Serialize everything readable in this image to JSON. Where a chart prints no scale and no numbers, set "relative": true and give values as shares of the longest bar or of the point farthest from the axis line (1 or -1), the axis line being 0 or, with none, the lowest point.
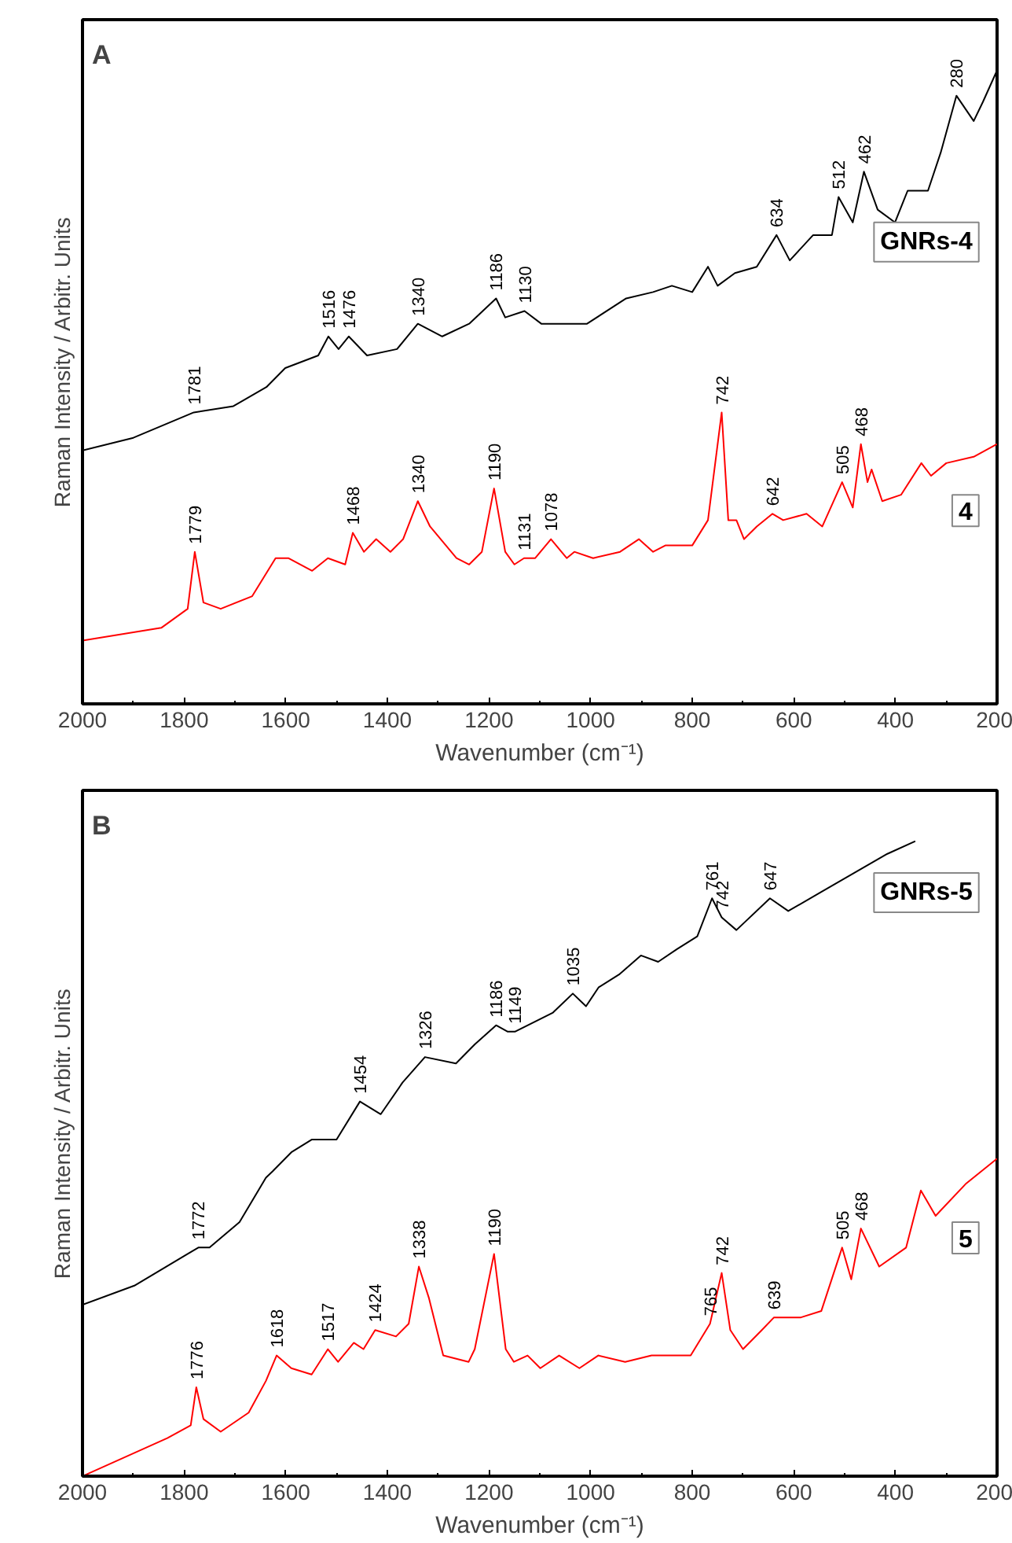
{
  "chart_data": [
    {
      "type": "line",
      "title": "A",
      "xlabel": "Wavenumber (cm⁻¹)",
      "ylabel": "Raman Intensity / Arbitr. Units",
      "relative": true,
      "xlim": [
        2000,
        200
      ],
      "xticks": [
        2000,
        1800,
        1600,
        1400,
        1200,
        1000,
        800,
        600,
        400,
        200
      ],
      "grid": false,
      "tick_labels": "x",
      "series": [
        {
          "name": "GNRs-4",
          "color": "#000000",
          "x": [
            2000,
            1900,
            1781,
            1703,
            1638,
            1601,
            1536,
            1516,
            1496,
            1476,
            1440,
            1381,
            1340,
            1292,
            1239,
            1186,
            1168,
            1130,
            1097,
            1007,
            930,
            877,
            840,
            800,
            769,
            750,
            716,
            673,
            634,
            608,
            562,
            525,
            512,
            484,
            462,
            435,
            401,
            376,
            336,
            311,
            280,
            246,
            228,
            200
          ],
          "values": [
            0.4,
            0.42,
            0.46,
            0.47,
            0.5,
            0.53,
            0.55,
            0.58,
            0.56,
            0.58,
            0.55,
            0.56,
            0.6,
            0.58,
            0.6,
            0.64,
            0.61,
            0.62,
            0.6,
            0.6,
            0.64,
            0.65,
            0.66,
            0.65,
            0.69,
            0.66,
            0.68,
            0.69,
            0.74,
            0.7,
            0.74,
            0.74,
            0.8,
            0.76,
            0.84,
            0.78,
            0.76,
            0.81,
            0.81,
            0.87,
            0.96,
            0.92,
            0.95,
            1.0
          ]
        },
        {
          "name": "4",
          "color": "#ff0000",
          "x": [
            2000,
            1845,
            1793,
            1779,
            1762,
            1728,
            1666,
            1620,
            1595,
            1548,
            1517,
            1483,
            1468,
            1446,
            1422,
            1394,
            1369,
            1340,
            1316,
            1264,
            1239,
            1214,
            1190,
            1168,
            1150,
            1131,
            1109,
            1078,
            1047,
            1032,
            995,
            942,
            905,
            877,
            853,
            800,
            769,
            742,
            729,
            713,
            698,
            673,
            642,
            621,
            575,
            544,
            505,
            484,
            468,
            455,
            447,
            426,
            389,
            349,
            330,
            300,
            246,
            200
          ],
          "values": [
            0.1,
            0.12,
            0.15,
            0.24,
            0.16,
            0.15,
            0.17,
            0.23,
            0.23,
            0.21,
            0.23,
            0.22,
            0.27,
            0.24,
            0.26,
            0.24,
            0.26,
            0.32,
            0.28,
            0.23,
            0.22,
            0.24,
            0.34,
            0.24,
            0.22,
            0.23,
            0.23,
            0.26,
            0.23,
            0.24,
            0.23,
            0.24,
            0.26,
            0.24,
            0.25,
            0.25,
            0.29,
            0.46,
            0.29,
            0.29,
            0.26,
            0.28,
            0.3,
            0.29,
            0.3,
            0.28,
            0.35,
            0.31,
            0.41,
            0.35,
            0.37,
            0.32,
            0.33,
            0.38,
            0.36,
            0.38,
            0.39,
            0.41
          ]
        }
      ],
      "annotations": [
        {
          "text": "1781",
          "x": 1781,
          "y": 0.46
        },
        {
          "text": "1516",
          "x": 1516,
          "y": 0.58
        },
        {
          "text": "1476",
          "x": 1476,
          "y": 0.58
        },
        {
          "text": "1340",
          "x": 1340,
          "y": 0.6
        },
        {
          "text": "1186",
          "x": 1186,
          "y": 0.64
        },
        {
          "text": "1130",
          "x": 1130,
          "y": 0.62
        },
        {
          "text": "634",
          "x": 634,
          "y": 0.74
        },
        {
          "text": "512",
          "x": 512,
          "y": 0.8
        },
        {
          "text": "462",
          "x": 462,
          "y": 0.84
        },
        {
          "text": "280",
          "x": 280,
          "y": 0.96
        },
        {
          "text": "1779",
          "x": 1779,
          "y": 0.24
        },
        {
          "text": "1468",
          "x": 1468,
          "y": 0.27
        },
        {
          "text": "1340",
          "x": 1340,
          "y": 0.32
        },
        {
          "text": "1190",
          "x": 1190,
          "y": 0.34
        },
        {
          "text": "1131",
          "x": 1131,
          "y": 0.23
        },
        {
          "text": "1078",
          "x": 1078,
          "y": 0.26
        },
        {
          "text": "742",
          "x": 742,
          "y": 0.46
        },
        {
          "text": "642",
          "x": 642,
          "y": 0.3
        },
        {
          "text": "505",
          "x": 505,
          "y": 0.35
        },
        {
          "text": "468",
          "x": 468,
          "y": 0.41
        }
      ]
    },
    {
      "type": "line",
      "title": "B",
      "xlabel": "Wavenumber (cm⁻¹)",
      "ylabel": "Raman Intensity / Arbitr. Units",
      "relative": true,
      "xlim": [
        2000,
        200
      ],
      "xticks": [
        2000,
        1800,
        1600,
        1400,
        1200,
        1000,
        800,
        600,
        400,
        200
      ],
      "grid": false,
      "tick_labels": "x",
      "series": [
        {
          "name": "GNRs-5",
          "color": "#000000",
          "x": [
            2000,
            1898,
            1793,
            1772,
            1750,
            1691,
            1639,
            1626,
            1589,
            1549,
            1500,
            1454,
            1413,
            1370,
            1326,
            1265,
            1228,
            1186,
            1163,
            1149,
            1074,
            1035,
            1009,
            984,
            944,
            901,
            867,
            830,
            790,
            761,
            742,
            713,
            647,
            611,
            546,
            481,
            416,
            361
          ],
          "values": [
            0.27,
            0.3,
            0.35,
            0.36,
            0.36,
            0.4,
            0.47,
            0.48,
            0.51,
            0.53,
            0.53,
            0.59,
            0.57,
            0.62,
            0.66,
            0.65,
            0.68,
            0.71,
            0.7,
            0.7,
            0.73,
            0.76,
            0.74,
            0.77,
            0.79,
            0.82,
            0.81,
            0.83,
            0.85,
            0.91,
            0.88,
            0.86,
            0.91,
            0.89,
            0.92,
            0.95,
            0.98,
            1.0
          ]
        },
        {
          "name": "5",
          "color": "#ff0000",
          "x": [
            2000,
            1833,
            1787,
            1776,
            1762,
            1728,
            1673,
            1639,
            1618,
            1589,
            1549,
            1517,
            1497,
            1466,
            1447,
            1424,
            1383,
            1358,
            1338,
            1318,
            1290,
            1240,
            1228,
            1190,
            1167,
            1151,
            1124,
            1099,
            1062,
            1022,
            985,
            932,
            880,
            803,
            765,
            742,
            725,
            700,
            663,
            639,
            586,
            546,
            505,
            487,
            468,
            432,
            379,
            350,
            321,
            262,
            200
          ],
          "values": [
            0.0,
            0.06,
            0.08,
            0.14,
            0.09,
            0.07,
            0.1,
            0.15,
            0.19,
            0.17,
            0.16,
            0.2,
            0.18,
            0.21,
            0.2,
            0.23,
            0.22,
            0.24,
            0.33,
            0.28,
            0.19,
            0.18,
            0.2,
            0.35,
            0.2,
            0.18,
            0.19,
            0.17,
            0.19,
            0.17,
            0.19,
            0.18,
            0.19,
            0.19,
            0.24,
            0.32,
            0.23,
            0.2,
            0.23,
            0.25,
            0.25,
            0.26,
            0.36,
            0.31,
            0.39,
            0.33,
            0.36,
            0.45,
            0.41,
            0.46,
            0.5
          ]
        }
      ],
      "annotations": [
        {
          "text": "1772",
          "x": 1772,
          "y": 0.36
        },
        {
          "text": "1454",
          "x": 1454,
          "y": 0.59
        },
        {
          "text": "1326",
          "x": 1326,
          "y": 0.66
        },
        {
          "text": "1186",
          "x": 1186,
          "y": 0.71
        },
        {
          "text": "1149",
          "x": 1149,
          "y": 0.7
        },
        {
          "text": "1035",
          "x": 1035,
          "y": 0.76
        },
        {
          "text": "761",
          "x": 761,
          "y": 0.91
        },
        {
          "text": "742",
          "x": 742,
          "y": 0.88
        },
        {
          "text": "647",
          "x": 647,
          "y": 0.91
        },
        {
          "text": "1776",
          "x": 1776,
          "y": 0.14
        },
        {
          "text": "1618",
          "x": 1618,
          "y": 0.19
        },
        {
          "text": "1517",
          "x": 1517,
          "y": 0.2
        },
        {
          "text": "1424",
          "x": 1424,
          "y": 0.23
        },
        {
          "text": "1338",
          "x": 1338,
          "y": 0.33
        },
        {
          "text": "1190",
          "x": 1190,
          "y": 0.35
        },
        {
          "text": "765",
          "x": 765,
          "y": 0.24
        },
        {
          "text": "742",
          "x": 742,
          "y": 0.32
        },
        {
          "text": "639",
          "x": 639,
          "y": 0.25
        },
        {
          "text": "505",
          "x": 505,
          "y": 0.36
        },
        {
          "text": "468",
          "x": 468,
          "y": 0.39
        }
      ]
    }
  ]
}
